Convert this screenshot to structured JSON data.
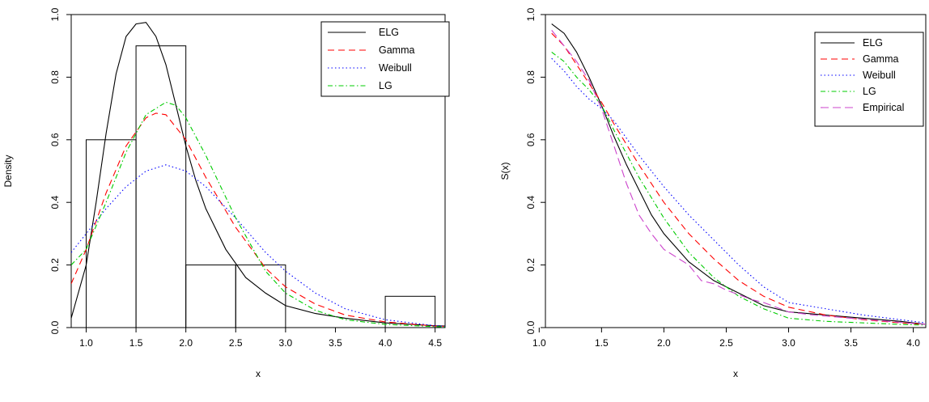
{
  "chart_data": [
    {
      "type": "line",
      "title": "",
      "xlabel": "x",
      "ylabel": "Density",
      "xlim": [
        0.85,
        4.6
      ],
      "ylim": [
        0,
        1.0
      ],
      "xticks": [
        "1.0",
        "1.5",
        "2.0",
        "2.5",
        "3.0",
        "3.5",
        "4.0",
        "4.5"
      ],
      "xtick_values": [
        1.0,
        1.5,
        2.0,
        2.5,
        3.0,
        3.5,
        4.0,
        4.5
      ],
      "yticks": [
        "0.0",
        "0.2",
        "0.4",
        "0.6",
        "0.8",
        "1.0"
      ],
      "ytick_values": [
        0,
        0.2,
        0.4,
        0.6,
        0.8,
        1.0
      ],
      "legend_position": "top-right",
      "histogram": [
        {
          "x0": 1.0,
          "x1": 1.5,
          "density": 0.6
        },
        {
          "x0": 1.5,
          "x1": 2.0,
          "density": 0.9
        },
        {
          "x0": 2.0,
          "x1": 2.5,
          "density": 0.2
        },
        {
          "x0": 2.5,
          "x1": 3.0,
          "density": 0.2
        },
        {
          "x0": 4.0,
          "x1": 4.5,
          "density": 0.1
        }
      ],
      "series": [
        {
          "name": "ELG",
          "color": "#000000",
          "dash": "solid",
          "x": [
            0.85,
            1.0,
            1.1,
            1.2,
            1.3,
            1.4,
            1.5,
            1.6,
            1.7,
            1.8,
            1.9,
            2.0,
            2.1,
            2.2,
            2.4,
            2.6,
            2.8,
            3.0,
            3.3,
            3.6,
            4.0,
            4.5,
            4.6
          ],
          "y": [
            0.03,
            0.2,
            0.4,
            0.62,
            0.81,
            0.93,
            0.97,
            0.975,
            0.93,
            0.84,
            0.71,
            0.58,
            0.47,
            0.38,
            0.25,
            0.16,
            0.11,
            0.07,
            0.045,
            0.03,
            0.015,
            0.006,
            0.005
          ]
        },
        {
          "name": "Gamma",
          "color": "#ff0000",
          "dash": "8,5",
          "x": [
            0.85,
            1.0,
            1.2,
            1.4,
            1.6,
            1.7,
            1.8,
            2.0,
            2.2,
            2.5,
            2.8,
            3.0,
            3.3,
            3.6,
            4.0,
            4.5,
            4.6
          ],
          "y": [
            0.14,
            0.25,
            0.43,
            0.58,
            0.67,
            0.685,
            0.68,
            0.6,
            0.48,
            0.32,
            0.19,
            0.13,
            0.075,
            0.04,
            0.018,
            0.005,
            0.004
          ]
        },
        {
          "name": "Weibull",
          "color": "#0000ff",
          "dash": "1.5,3",
          "x": [
            0.85,
            1.0,
            1.2,
            1.4,
            1.6,
            1.8,
            2.0,
            2.2,
            2.5,
            2.8,
            3.0,
            3.3,
            3.6,
            4.0,
            4.5,
            4.6
          ],
          "y": [
            0.24,
            0.3,
            0.38,
            0.45,
            0.5,
            0.52,
            0.5,
            0.45,
            0.35,
            0.24,
            0.18,
            0.11,
            0.06,
            0.025,
            0.006,
            0.004
          ]
        },
        {
          "name": "LG",
          "color": "#00cc00",
          "dash": "6,3,1.5,3",
          "x": [
            0.85,
            1.0,
            1.2,
            1.4,
            1.6,
            1.8,
            1.9,
            2.0,
            2.2,
            2.5,
            2.8,
            3.0,
            3.3,
            3.6,
            4.0,
            4.5,
            4.6
          ],
          "y": [
            0.2,
            0.25,
            0.4,
            0.56,
            0.68,
            0.72,
            0.71,
            0.67,
            0.55,
            0.35,
            0.18,
            0.11,
            0.055,
            0.025,
            0.01,
            0.003,
            0.002
          ]
        }
      ]
    },
    {
      "type": "line",
      "title": "",
      "xlabel": "x",
      "ylabel": "S(x)",
      "xlim": [
        1.05,
        4.1
      ],
      "ylim": [
        0,
        1.0
      ],
      "xticks": [
        "1.0",
        "1.5",
        "2.0",
        "2.5",
        "3.0",
        "3.5",
        "4.0"
      ],
      "xtick_values": [
        1.0,
        1.5,
        2.0,
        2.5,
        3.0,
        3.5,
        4.0
      ],
      "yticks": [
        "0.0",
        "0.2",
        "0.4",
        "0.6",
        "0.8",
        "1.0"
      ],
      "ytick_values": [
        0,
        0.2,
        0.4,
        0.6,
        0.8,
        1.0
      ],
      "legend_position": "top-right",
      "series": [
        {
          "name": "ELG",
          "color": "#000000",
          "dash": "solid",
          "x": [
            1.1,
            1.2,
            1.3,
            1.4,
            1.5,
            1.6,
            1.7,
            1.8,
            1.9,
            2.0,
            2.2,
            2.4,
            2.6,
            2.8,
            3.0,
            3.3,
            3.6,
            3.9,
            4.1
          ],
          "y": [
            0.97,
            0.94,
            0.88,
            0.8,
            0.71,
            0.61,
            0.52,
            0.44,
            0.36,
            0.3,
            0.21,
            0.15,
            0.11,
            0.07,
            0.05,
            0.04,
            0.03,
            0.02,
            0.01
          ]
        },
        {
          "name": "Gamma",
          "color": "#ff0000",
          "dash": "8,5",
          "x": [
            1.1,
            1.2,
            1.3,
            1.4,
            1.5,
            1.6,
            1.8,
            2.0,
            2.2,
            2.4,
            2.6,
            2.8,
            3.0,
            3.3,
            3.6,
            3.9,
            4.1
          ],
          "y": [
            0.94,
            0.9,
            0.84,
            0.78,
            0.72,
            0.65,
            0.52,
            0.4,
            0.3,
            0.22,
            0.15,
            0.1,
            0.065,
            0.04,
            0.025,
            0.015,
            0.01
          ]
        },
        {
          "name": "Weibull",
          "color": "#0000ff",
          "dash": "1.5,3",
          "x": [
            1.1,
            1.2,
            1.3,
            1.4,
            1.5,
            1.6,
            1.8,
            2.0,
            2.2,
            2.4,
            2.6,
            2.8,
            3.0,
            3.3,
            3.6,
            3.9,
            4.1
          ],
          "y": [
            0.86,
            0.82,
            0.77,
            0.73,
            0.7,
            0.66,
            0.55,
            0.45,
            0.36,
            0.28,
            0.2,
            0.13,
            0.08,
            0.06,
            0.04,
            0.025,
            0.015
          ]
        },
        {
          "name": "LG",
          "color": "#00cc00",
          "dash": "6,3,1.5,3",
          "x": [
            1.1,
            1.2,
            1.3,
            1.4,
            1.5,
            1.6,
            1.8,
            2.0,
            2.2,
            2.4,
            2.6,
            2.8,
            3.0,
            3.3,
            3.6,
            3.9,
            4.1
          ],
          "y": [
            0.88,
            0.85,
            0.8,
            0.76,
            0.71,
            0.63,
            0.48,
            0.35,
            0.24,
            0.16,
            0.1,
            0.06,
            0.03,
            0.02,
            0.015,
            0.01,
            0.008
          ]
        },
        {
          "name": "Empirical",
          "color": "#cc44cc",
          "dash": "10,5",
          "x": [
            1.1,
            1.2,
            1.3,
            1.4,
            1.5,
            1.6,
            1.7,
            1.8,
            1.9,
            2.0,
            2.2,
            2.3,
            2.4,
            2.5,
            2.7,
            2.8,
            3.0,
            3.2,
            3.5,
            3.8,
            4.1
          ],
          "y": [
            0.95,
            0.9,
            0.85,
            0.79,
            0.7,
            0.58,
            0.46,
            0.36,
            0.3,
            0.25,
            0.2,
            0.15,
            0.14,
            0.12,
            0.09,
            0.08,
            0.05,
            0.04,
            0.03,
            0.02,
            0.01
          ]
        }
      ]
    }
  ]
}
